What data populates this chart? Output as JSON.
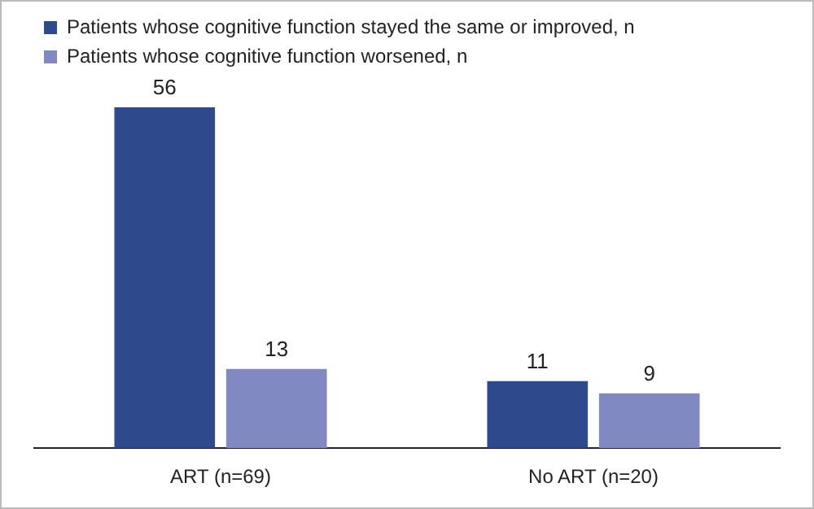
{
  "chart_data": {
    "type": "bar",
    "categories": [
      "ART (n=69)",
      "No ART (n=20)"
    ],
    "series": [
      {
        "name": "Patients whose cognitive function stayed the same or improved, n",
        "color": "#2e4a8c",
        "values": [
          56,
          11
        ]
      },
      {
        "name": "Patients whose cognitive function worsened, n",
        "color": "#8189c2",
        "values": [
          13,
          9
        ]
      }
    ],
    "data_labels": true,
    "legend": "top left",
    "grid": false
  }
}
